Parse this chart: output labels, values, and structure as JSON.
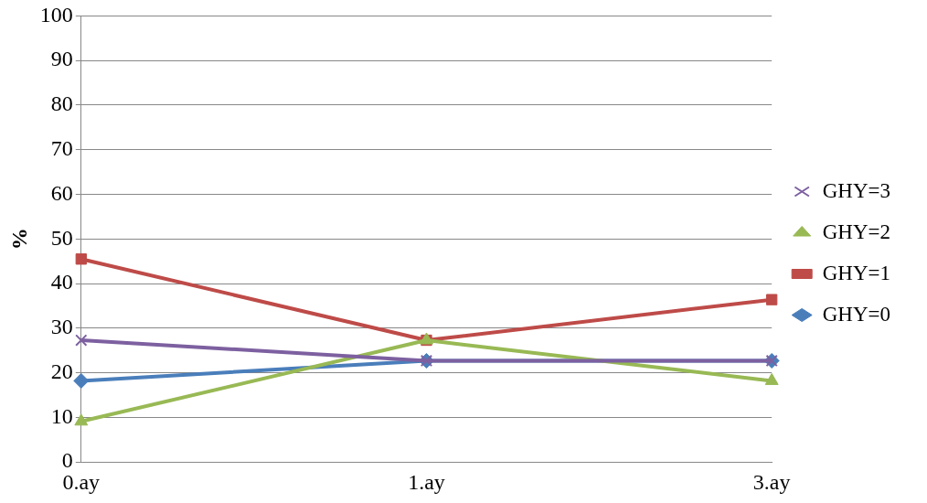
{
  "chart_data": {
    "type": "line",
    "ylabel": "%",
    "categories": [
      "0.ay",
      "1.ay",
      "3.ay"
    ],
    "series": [
      {
        "name": "GHY=0",
        "color": "#4a7ebb",
        "marker": "diamond",
        "values": [
          18.2,
          22.7,
          22.7
        ]
      },
      {
        "name": "GHY=1",
        "color": "#be4b48",
        "marker": "square",
        "values": [
          45.5,
          27.3,
          36.4
        ]
      },
      {
        "name": "GHY=2",
        "color": "#98b954",
        "marker": "triangle",
        "values": [
          9.1,
          27.3,
          18.2
        ]
      },
      {
        "name": "GHY=3",
        "color": "#7d60a0",
        "marker": "cross",
        "values": [
          27.3,
          22.7,
          22.7
        ]
      }
    ],
    "ylim": [
      0,
      100
    ],
    "yticks": [
      0,
      10,
      20,
      30,
      40,
      50,
      60,
      70,
      80,
      90,
      100
    ],
    "grid": "y",
    "legend": "right"
  }
}
